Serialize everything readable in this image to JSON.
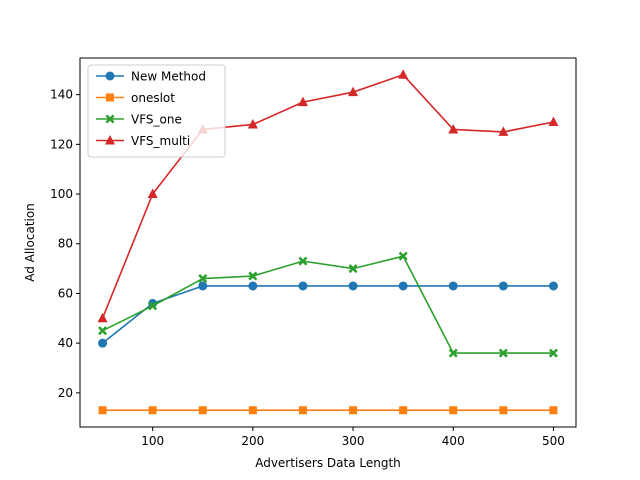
{
  "chart_data": {
    "type": "line",
    "title": "",
    "xlabel": "Advertisers Data Length",
    "ylabel": "Ad Allocation",
    "x": [
      50,
      100,
      150,
      200,
      250,
      300,
      350,
      400,
      450,
      500
    ],
    "xlim": [
      27.5,
      522.5
    ],
    "ylim": [
      6.25,
      154.75
    ],
    "xticks": [
      100,
      200,
      300,
      400,
      500
    ],
    "yticks": [
      20,
      40,
      60,
      80,
      100,
      120,
      140
    ],
    "grid": false,
    "legend_position": "top-left",
    "series": [
      {
        "name": "New Method",
        "color": "#1f77b4",
        "marker": "circle",
        "values": [
          40,
          56,
          63,
          63,
          63,
          63,
          63,
          63,
          63,
          63
        ]
      },
      {
        "name": "oneslot",
        "color": "#ff7f0e",
        "marker": "square",
        "values": [
          13,
          13,
          13,
          13,
          13,
          13,
          13,
          13,
          13,
          13
        ]
      },
      {
        "name": "VFS_one",
        "color": "#2ca02c",
        "marker": "x",
        "values": [
          45,
          55,
          66,
          67,
          73,
          70,
          75,
          36,
          36,
          36
        ]
      },
      {
        "name": "VFS_multi",
        "color": "#d62728",
        "marker": "triangle",
        "values": [
          50,
          100,
          126,
          128,
          137,
          141,
          148,
          126,
          125,
          129
        ]
      }
    ]
  }
}
